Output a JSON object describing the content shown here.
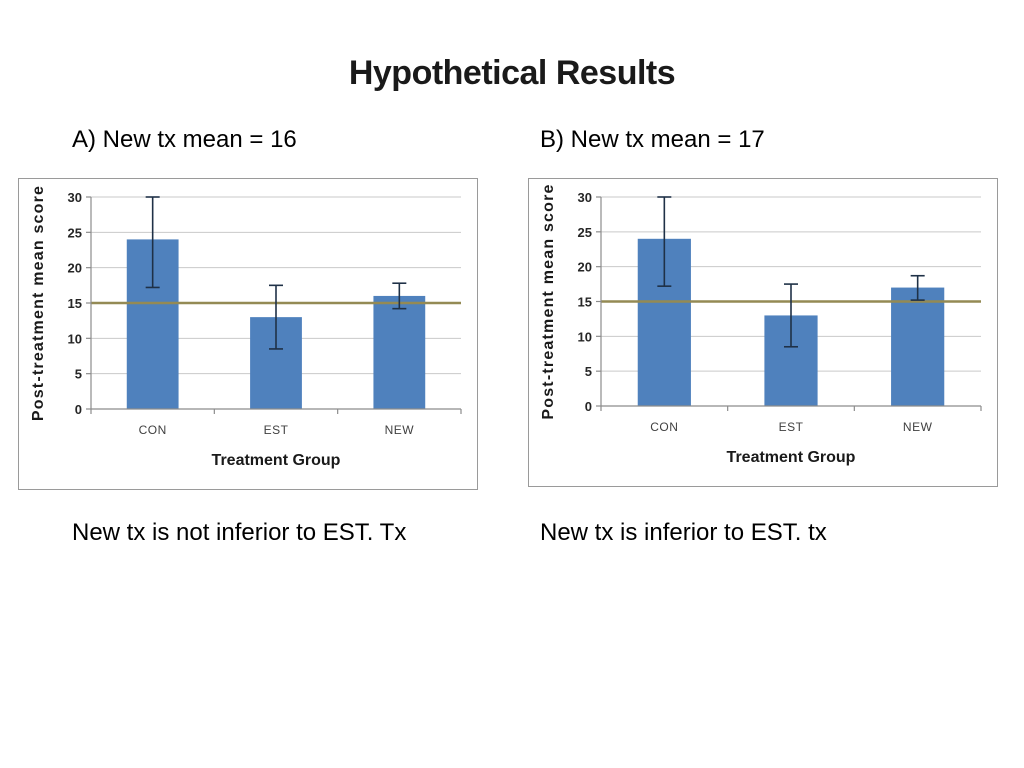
{
  "slide": {
    "title": "Hypothetical Results"
  },
  "panels": [
    {
      "heading": "A) New tx mean = 16",
      "caption": "New tx is not inferior to EST. Tx"
    },
    {
      "heading": "B) New tx mean = 17",
      "caption": "New tx is inferior to EST. tx"
    }
  ],
  "colors": {
    "bar": "#4f81bd",
    "reference_line": "#948a54",
    "grid": "#c9c9c9",
    "axis": "#8c8c8c",
    "error_bar": "#1f3147",
    "tick_text": "#262626",
    "category_text": "#404040",
    "axis_title_text": "#1a1a1a"
  },
  "chart_data": [
    {
      "type": "bar",
      "title": "A) New tx mean = 16",
      "categories": [
        "CON",
        "EST",
        "NEW"
      ],
      "values": [
        24,
        13,
        16
      ],
      "error_low": [
        17.2,
        8.5,
        14.2
      ],
      "error_high": [
        30,
        17.5,
        17.8
      ],
      "xlabel": "Treatment Group",
      "ylabel": "Post-treatment mean score",
      "ylim": [
        0,
        30
      ],
      "ytick_step": 5,
      "ytick_labels": [
        "0",
        "5",
        "10",
        "15",
        "20",
        "25",
        "30"
      ],
      "reference_line": 15,
      "grid": true,
      "legend": "none"
    },
    {
      "type": "bar",
      "title": "B) New tx mean = 17",
      "categories": [
        "CON",
        "EST",
        "NEW"
      ],
      "values": [
        24,
        13,
        17
      ],
      "error_low": [
        17.2,
        8.5,
        15.2
      ],
      "error_high": [
        30,
        17.5,
        18.7
      ],
      "xlabel": "Treatment Group",
      "ylabel": "Post-treatment mean score",
      "ylim": [
        0,
        30
      ],
      "ytick_step": 5,
      "ytick_labels": [
        "0",
        "5",
        "10",
        "15",
        "20",
        "25",
        "30"
      ],
      "reference_line": 15,
      "grid": true,
      "legend": "none"
    }
  ]
}
